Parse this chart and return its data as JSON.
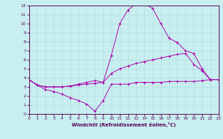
{
  "xlabel": "Windchill (Refroidissement éolien,°C)",
  "bg_color": "#c8eef0",
  "line_color": "#aa00aa",
  "grid_color": "#b0dde0",
  "xlim": [
    0,
    23
  ],
  "ylim": [
    0,
    12
  ],
  "xticks": [
    0,
    1,
    2,
    3,
    4,
    5,
    6,
    7,
    8,
    9,
    10,
    11,
    12,
    13,
    14,
    15,
    16,
    17,
    18,
    19,
    20,
    21,
    22,
    23
  ],
  "yticks": [
    0,
    1,
    2,
    3,
    4,
    5,
    6,
    7,
    8,
    9,
    10,
    11,
    12
  ],
  "lines": [
    {
      "x": [
        0,
        1,
        2,
        3,
        4,
        5,
        6,
        7,
        8,
        9,
        10,
        11,
        12,
        13,
        14,
        15,
        16,
        17,
        18,
        19,
        20,
        21,
        22,
        23
      ],
      "y": [
        3.8,
        3.2,
        2.7,
        2.5,
        2.2,
        1.8,
        1.5,
        1.1,
        0.3,
        1.5,
        3.3,
        3.3,
        3.3,
        3.5,
        3.5,
        3.5,
        3.5,
        3.6,
        3.6,
        3.6,
        3.6,
        3.7,
        3.8,
        3.8
      ]
    },
    {
      "x": [
        0,
        1,
        2,
        3,
        4,
        5,
        6,
        7,
        8,
        9,
        10,
        11,
        12,
        13,
        14,
        15,
        16,
        17,
        18,
        19,
        20,
        21,
        22,
        23
      ],
      "y": [
        3.8,
        3.2,
        3.0,
        3.0,
        3.0,
        3.1,
        3.2,
        3.3,
        3.4,
        3.5,
        4.5,
        5.0,
        5.3,
        5.6,
        5.8,
        6.0,
        6.2,
        6.4,
        6.6,
        6.7,
        5.5,
        4.8,
        3.8,
        3.8
      ]
    },
    {
      "x": [
        0,
        1,
        2,
        3,
        4,
        5,
        6,
        7,
        8,
        9,
        10,
        11,
        12,
        13,
        14,
        15,
        16,
        17,
        18,
        19,
        20,
        21,
        22,
        23
      ],
      "y": [
        3.8,
        3.2,
        3.0,
        3.0,
        3.0,
        3.1,
        3.3,
        3.5,
        3.7,
        3.5,
        6.5,
        10.0,
        11.5,
        12.2,
        12.2,
        11.7,
        10.0,
        8.4,
        7.9,
        7.0,
        6.7,
        5.0,
        3.8,
        3.8
      ]
    }
  ]
}
